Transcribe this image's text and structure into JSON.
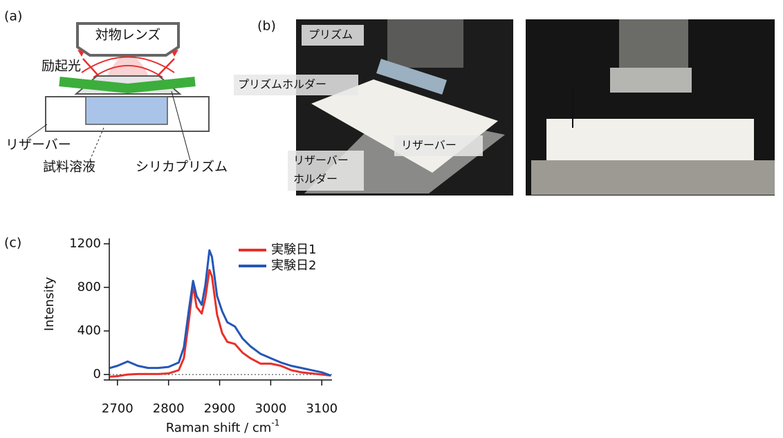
{
  "panel_labels": [
    "(a)",
    "(b)",
    "(c)"
  ],
  "diagram": {
    "objective": "対物レンズ",
    "excitation": "励起光",
    "reservoir": "リザーバー",
    "sample": "試料溶液",
    "prism": "シリカプリズム"
  },
  "photo": {
    "prism": "プリズム",
    "prism_holder": "プリズムホルダー",
    "reservoir": "リザーバー",
    "reservoir_holder": [
      "リザーバー",
      "ホルダー"
    ]
  },
  "chart_data": {
    "type": "line",
    "x_label": "Raman shift / cm",
    "x_label_superscript": "-1",
    "y_label": "Intensity",
    "x": [
      2685,
      2700,
      2720,
      2740,
      2760,
      2780,
      2800,
      2820,
      2830,
      2840,
      2848,
      2855,
      2865,
      2872,
      2880,
      2885,
      2895,
      2905,
      2915,
      2930,
      2945,
      2960,
      2980,
      3000,
      3020,
      3040,
      3060,
      3080,
      3100,
      3118
    ],
    "series": [
      {
        "name": "実験日1",
        "color": "#e8302a",
        "values": [
          -20,
          -15,
          0,
          5,
          5,
          5,
          10,
          40,
          150,
          500,
          820,
          620,
          560,
          700,
          960,
          900,
          550,
          380,
          300,
          280,
          200,
          150,
          100,
          100,
          80,
          40,
          20,
          10,
          0,
          -10
        ]
      },
      {
        "name": "実験日2",
        "color": "#2457b8",
        "values": [
          60,
          80,
          120,
          80,
          60,
          60,
          70,
          110,
          250,
          600,
          860,
          720,
          640,
          820,
          1140,
          1080,
          720,
          580,
          480,
          440,
          330,
          260,
          190,
          150,
          110,
          80,
          60,
          40,
          20,
          -10
        ]
      }
    ],
    "xlim": [
      2684,
      3120
    ],
    "ylim": [
      -50,
      1250
    ],
    "xticks": [
      2700,
      2800,
      2900,
      3000,
      3100
    ],
    "yticks": [
      0,
      400,
      800,
      1200
    ]
  }
}
